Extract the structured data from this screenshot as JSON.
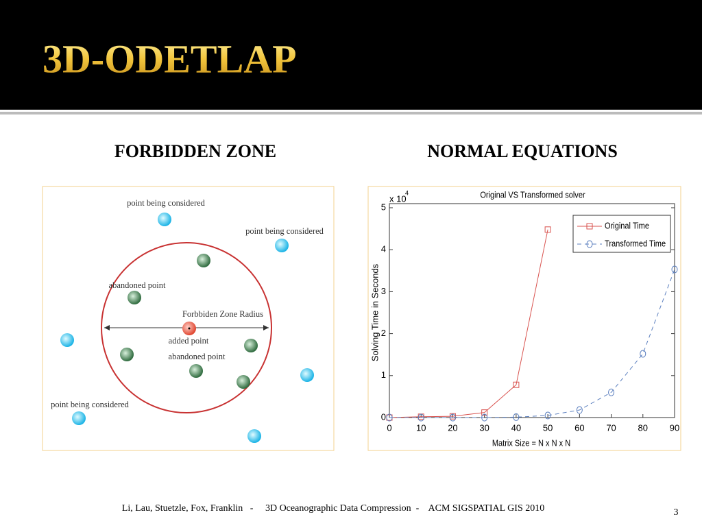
{
  "header": {
    "title": "3D-ODETLAP"
  },
  "sections": {
    "left_heading": "FORBIDDEN ZONE",
    "right_heading": "NORMAL EQUATIONS"
  },
  "forbidden_zone": {
    "labels": [
      "point being considered",
      "point being considered",
      "abandoned point",
      "Forbbiden Zone Radius",
      "added point",
      "abandoned point",
      "point being considered"
    ]
  },
  "chart_data": {
    "type": "line",
    "title": "Original VS Transformed solver",
    "x_label": "Matrix Size = N x N x N",
    "y_label": "Solving Time in Seconds",
    "y_multiplier": {
      "base": "x 10",
      "exponent": "4"
    },
    "x": [
      0,
      10,
      20,
      30,
      40,
      50,
      60,
      70,
      80,
      90
    ],
    "series": [
      {
        "name": "Original Time",
        "color": "#d9534f",
        "marker": "square",
        "dashed": false,
        "values": [
          0,
          0.02,
          0.03,
          0.12,
          0.78,
          4.48,
          null,
          null,
          null,
          null
        ]
      },
      {
        "name": "Transformed Time",
        "color": "#5b7fbf",
        "marker": "circle",
        "dashed": true,
        "values": [
          0,
          0,
          0,
          0,
          0.01,
          0.05,
          0.18,
          0.6,
          1.52,
          3.53
        ]
      }
    ],
    "xlim": [
      0,
      90
    ],
    "ylim": [
      0,
      5
    ],
    "xticks": [
      0,
      10,
      20,
      30,
      40,
      50,
      60,
      70,
      80,
      90
    ],
    "yticks": [
      0,
      1,
      2,
      3,
      4,
      5
    ],
    "grid": false
  },
  "footer": {
    "citation": "Li, Lau, Stuetzle, Fox, Franklin   -     3D Oceanographic Data Compression  -    ACM SIGSPATIAL GIS 2010",
    "page_number": "3"
  }
}
